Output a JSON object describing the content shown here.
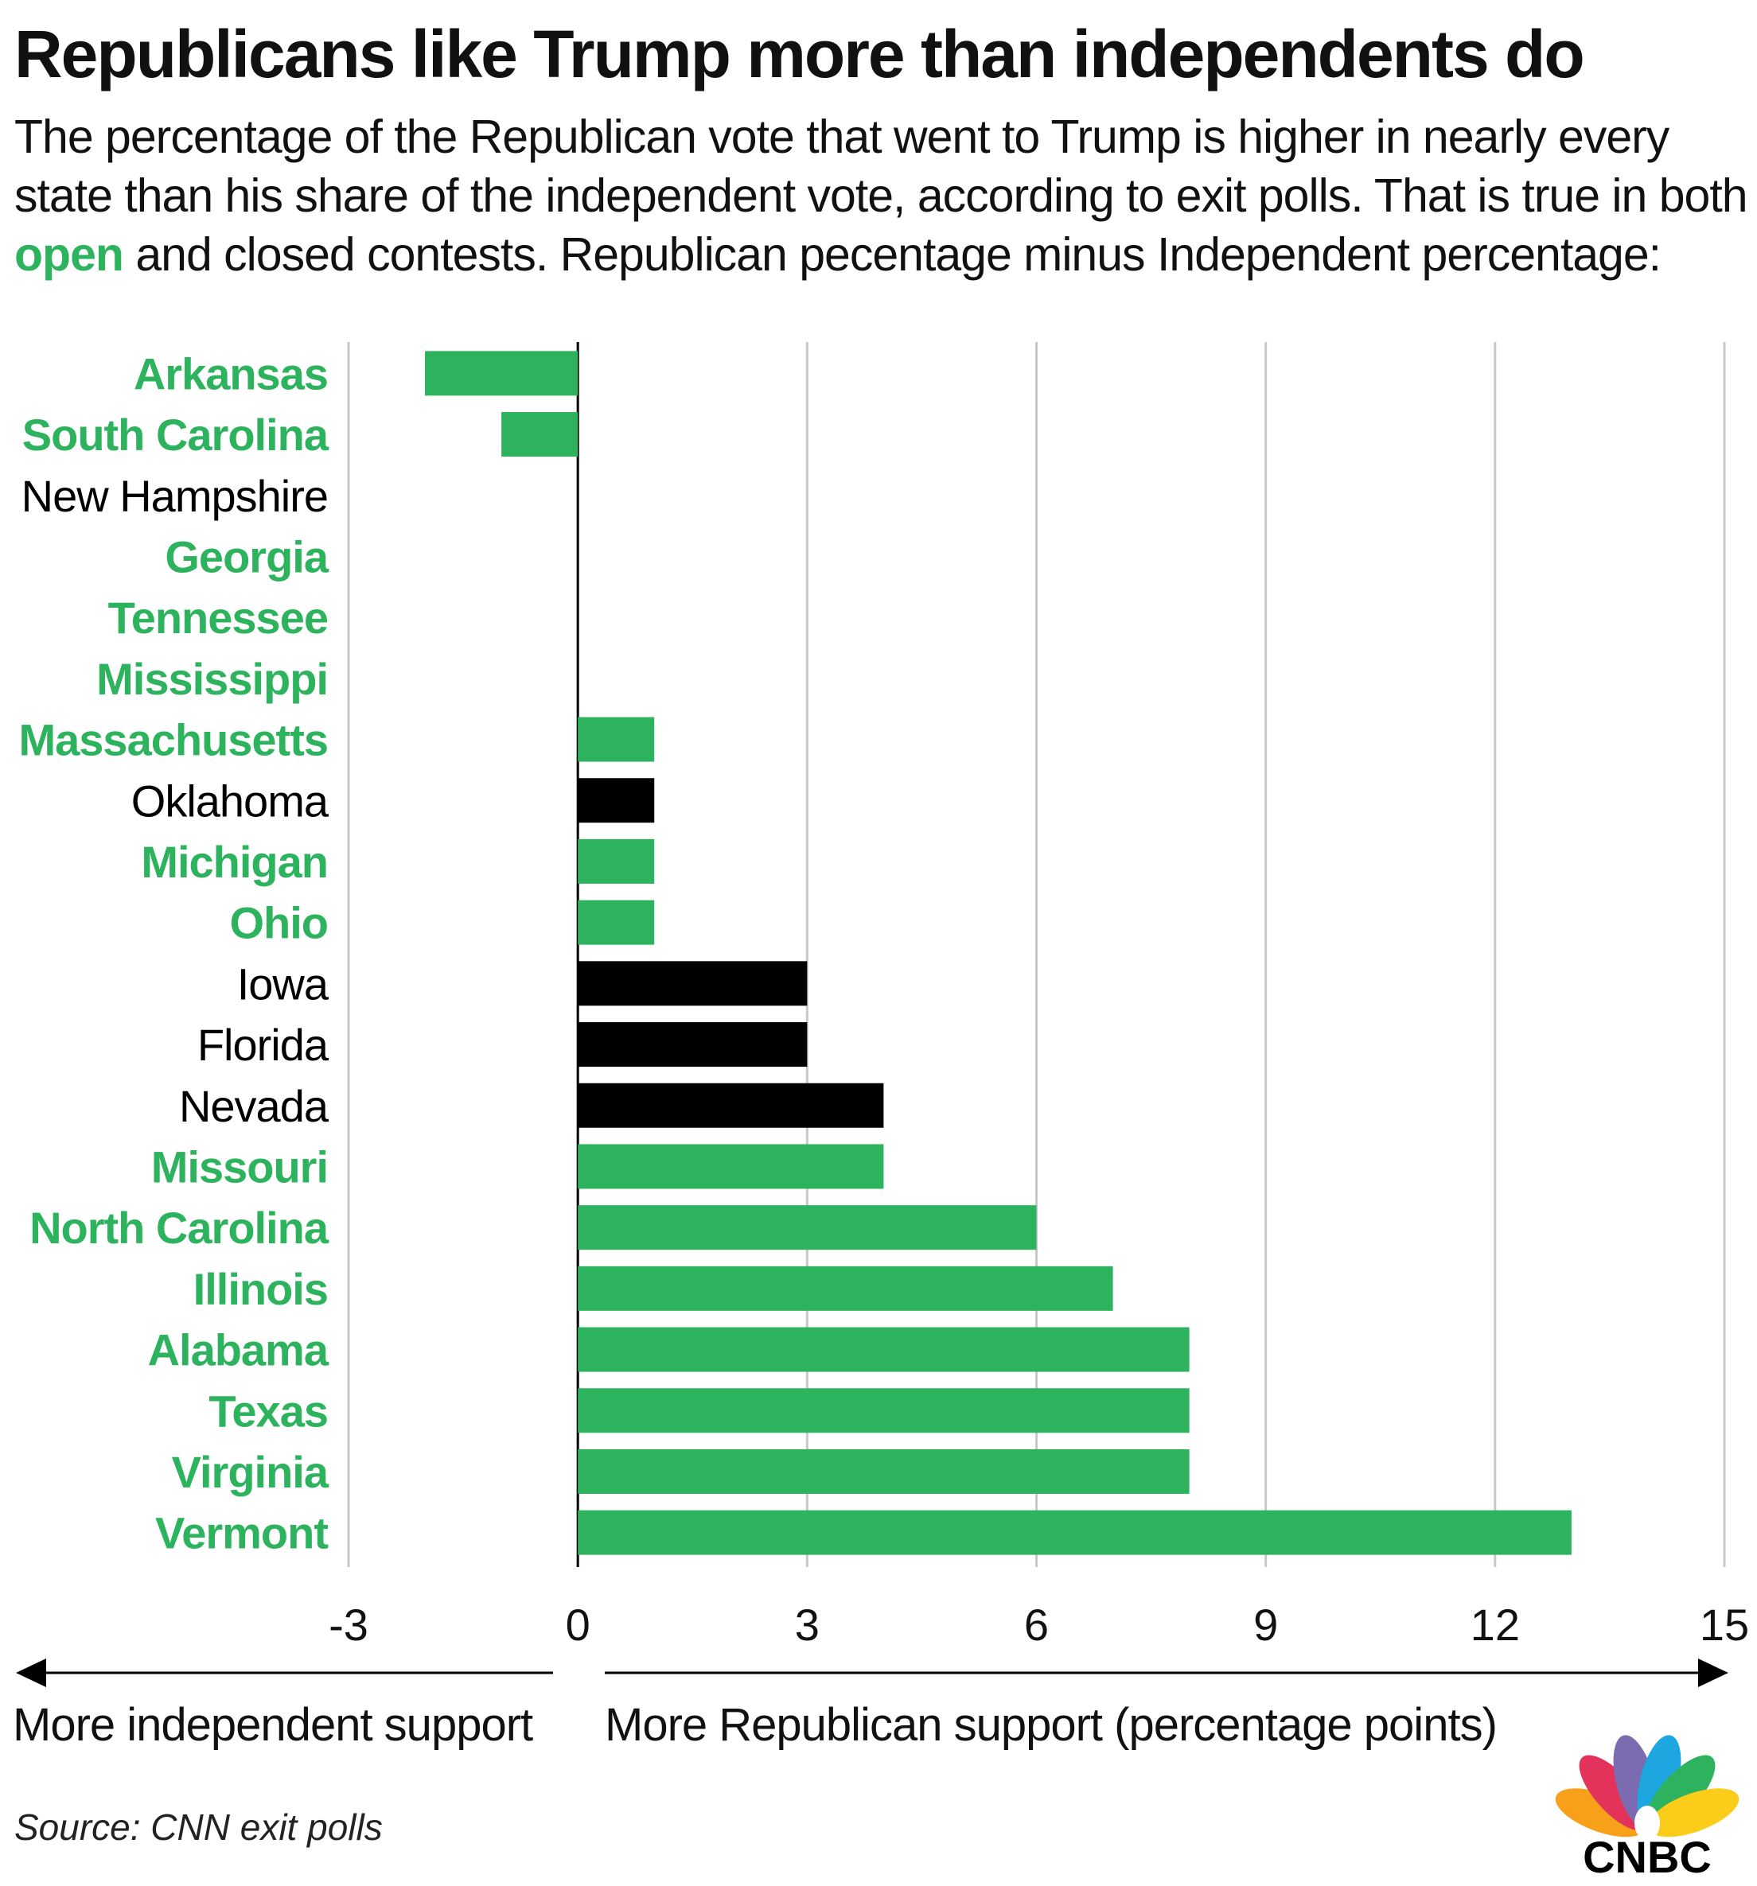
{
  "title": "Republicans like Trump more than independents do",
  "subtitle": {
    "part1": "The percentage of the Republican vote that went to Trump is higher in nearly every state than his share of the independent vote, according to exit polls. That is true in both ",
    "highlight": "open",
    "part2": " and closed contests. Republican pecentage minus Independent percentage:"
  },
  "colors": {
    "open": "#2db35d",
    "closed": "#000000",
    "grid": "#c8c8c8",
    "axis": "#000000"
  },
  "chart_data": {
    "type": "bar",
    "orientation": "horizontal",
    "categories": [
      "Arkansas",
      "South Carolina",
      "New Hampshire",
      "Georgia",
      "Tennessee",
      "Mississippi",
      "Massachusetts",
      "Oklahoma",
      "Michigan",
      "Ohio",
      "Iowa",
      "Florida",
      "Nevada",
      "Missouri",
      "North Carolina",
      "Illinois",
      "Alabama",
      "Texas",
      "Virginia",
      "Vermont"
    ],
    "values": [
      -2,
      -1,
      0,
      0,
      0,
      0,
      1,
      1,
      1,
      1,
      3,
      3,
      4,
      4,
      6,
      7,
      8,
      8,
      8,
      13
    ],
    "contest_type": [
      "open",
      "open",
      "closed",
      "open",
      "open",
      "open",
      "open",
      "closed",
      "open",
      "open",
      "closed",
      "closed",
      "closed",
      "open",
      "open",
      "open",
      "open",
      "open",
      "open",
      "open"
    ],
    "xlim": [
      -3,
      15
    ],
    "xticks": [
      -3,
      0,
      3,
      6,
      9,
      12,
      15
    ],
    "grid": true,
    "left_label": "More independent support",
    "right_label": "More Republican support (percentage points)"
  },
  "source": "Source: CNN exit polls",
  "logo": {
    "text": "CNBC",
    "icon": "nbc-peacock-icon",
    "feather_colors": [
      "#f9a01b",
      "#e4335b",
      "#7b6bb0",
      "#1ea6e0",
      "#2db35d",
      "#fccc1a"
    ]
  }
}
